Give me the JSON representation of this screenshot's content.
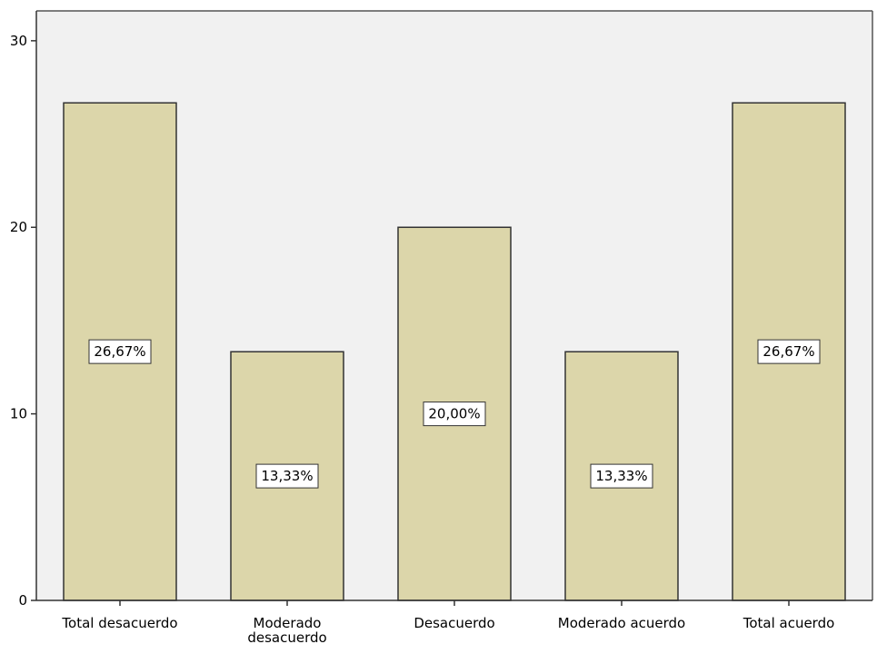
{
  "chart_data": {
    "type": "bar",
    "categories": [
      "Total desacuerdo",
      "Moderado desacuerdo",
      "Desacuerdo",
      "Moderado acuerdo",
      "Total acuerdo"
    ],
    "category_lines": [
      [
        "Total desacuerdo"
      ],
      [
        "Moderado",
        "desacuerdo"
      ],
      [
        "Desacuerdo"
      ],
      [
        "Moderado acuerdo"
      ],
      [
        "Total acuerdo"
      ]
    ],
    "values": [
      26.67,
      13.33,
      20.0,
      13.33,
      26.67
    ],
    "data_labels": [
      "26,67%",
      "13,33%",
      "20,00%",
      "13,33%",
      "26,67%"
    ],
    "yticks": [
      0,
      10,
      20,
      30
    ],
    "ytick_labels": [
      "0",
      "10",
      "20",
      "30"
    ],
    "ylim": [
      0,
      31.6
    ],
    "grid": false,
    "legend": false,
    "colors": {
      "plot_background": "#f1f1f1",
      "bar_fill": "#dcd6aa",
      "bar_stroke": "#333333",
      "axis": "#333333",
      "label_box": "#ffffff"
    }
  }
}
